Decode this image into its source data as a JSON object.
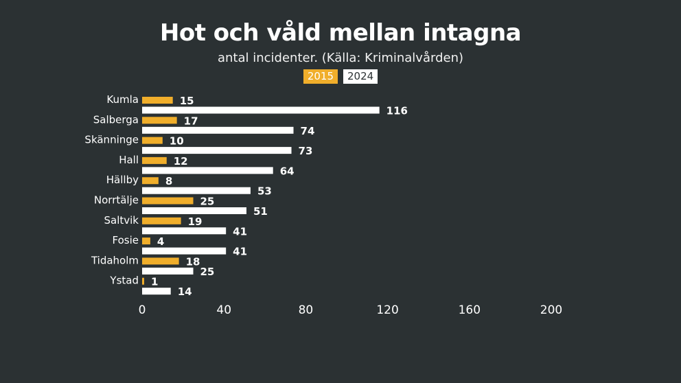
{
  "chart_data": {
    "type": "bar",
    "orientation": "horizontal",
    "title": "Hot och våld mellan intagna",
    "subtitle": "antal incidenter. (Källa: Kriminalvården)",
    "categories": [
      "Kumla",
      "Salberga",
      "Skänninge",
      "Hall",
      "Hällby",
      "Norrtälje",
      "Saltvik",
      "Fosie",
      "Tidaholm",
      "Ystad"
    ],
    "series": [
      {
        "name": "2015",
        "color": "#f0ae2b",
        "values": [
          15,
          17,
          10,
          12,
          8,
          25,
          19,
          4,
          18,
          1
        ]
      },
      {
        "name": "2024",
        "color": "#ffffff",
        "values": [
          116,
          74,
          73,
          64,
          53,
          51,
          41,
          41,
          25,
          14
        ]
      }
    ],
    "xlim": [
      0,
      200
    ],
    "xticks": [
      "0",
      "40",
      "80",
      "120",
      "160",
      "200"
    ],
    "grid": false,
    "legend_position": "top-center"
  }
}
